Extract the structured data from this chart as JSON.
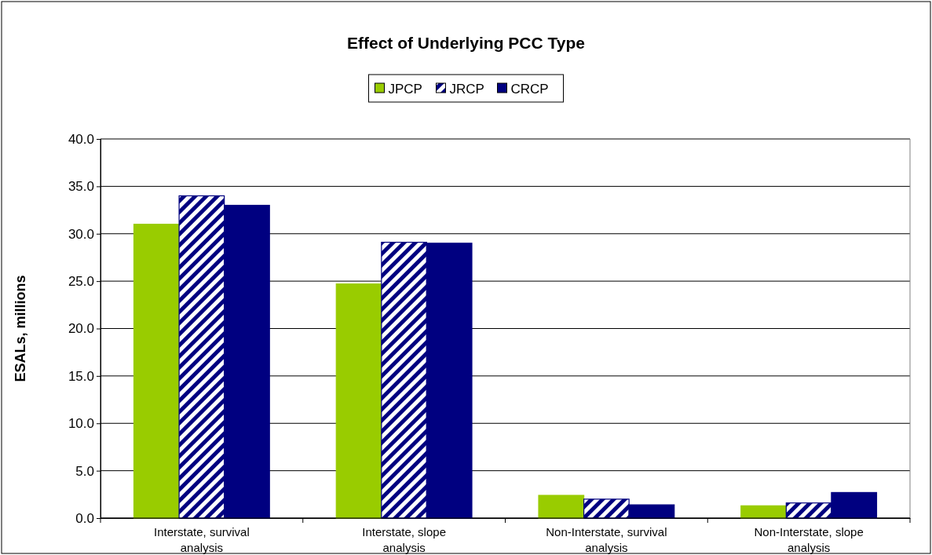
{
  "chart_data": {
    "type": "bar",
    "title": "Effect of Underlying PCC Type",
    "ylabel": "ESALs, millions",
    "categories": [
      "Interstate, survival analysis",
      "Interstate, slope analysis",
      "Non-Interstate, survival analysis",
      "Non-Interstate, slope analysis"
    ],
    "series": [
      {
        "name": "JPCP",
        "color": "#99cc00",
        "values": [
          31.0,
          24.7,
          2.4,
          1.3
        ]
      },
      {
        "name": "JRCP",
        "color": "#000080",
        "values": [
          34.0,
          29.1,
          2.0,
          1.6
        ]
      },
      {
        "name": "CRCP",
        "color": "#000080",
        "values": [
          33.0,
          29.0,
          1.4,
          2.7
        ]
      }
    ],
    "ylim": [
      0,
      40
    ],
    "yticks": [
      {
        "value": 0,
        "label": "0.0"
      },
      {
        "value": 5,
        "label": "5.0"
      },
      {
        "value": 10,
        "label": "10.0"
      },
      {
        "value": 15,
        "label": "15.0"
      },
      {
        "value": 20,
        "label": "20.0"
      },
      {
        "value": 25,
        "label": "25.0"
      },
      {
        "value": 30,
        "label": "30.0"
      },
      {
        "value": 35,
        "label": "35.0"
      },
      {
        "value": 40,
        "label": "40.0"
      }
    ],
    "grid": "y",
    "legend": "top"
  }
}
